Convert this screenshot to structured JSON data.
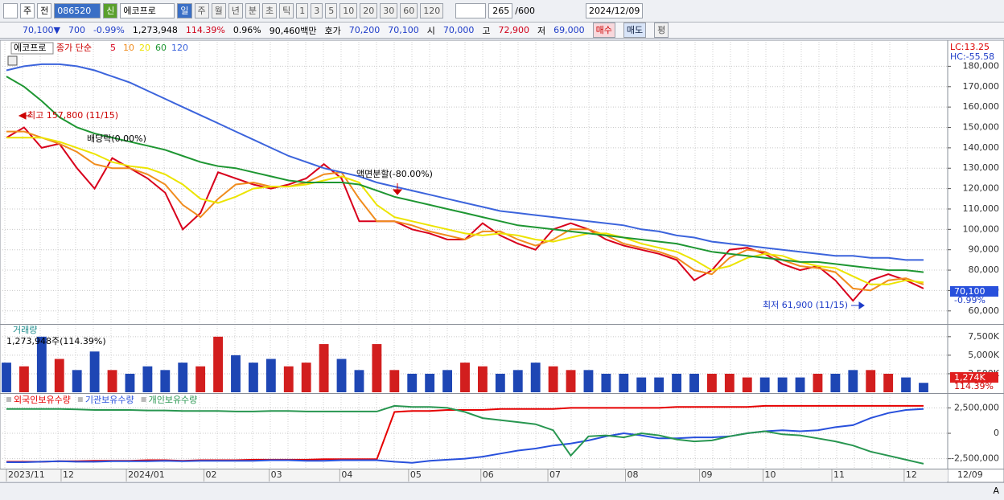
{
  "toolbar": {
    "market": "주",
    "prev": "전",
    "code": "086520",
    "badge": "신",
    "name": "에코프로",
    "periods": [
      "일",
      "주",
      "월",
      "년",
      "분",
      "초",
      "틱"
    ],
    "intervals": [
      "1",
      "3",
      "5",
      "10",
      "20",
      "30",
      "60",
      "120"
    ],
    "count": "265",
    "max": "/600",
    "date": "2024/12/09"
  },
  "quote": {
    "price": "70,100▼",
    "change": "700",
    "rate": "-0.99%",
    "volume": "1,273,948",
    "volume_rate": "114.39%",
    "turnover": "0.96%",
    "amount": "90,460백만",
    "bid_label": "호가",
    "ask": "70,200",
    "bid": "70,100",
    "open_label": "시",
    "open": "70,000",
    "high_label": "고",
    "high": "72,900",
    "low_label": "저",
    "low": "69,000",
    "buy": "매수",
    "sell": "매도",
    "avg": "평"
  },
  "chart_data": [
    {
      "type": "line",
      "title": "에코프로",
      "subtitle": "종가 단순",
      "grid": true,
      "series": [
        {
          "name": "5",
          "color": "#d8001c",
          "values": [
            145000,
            150000,
            140000,
            142000,
            130000,
            120000,
            135000,
            130000,
            125000,
            118000,
            100000,
            108000,
            128000,
            125000,
            122000,
            120000,
            122000,
            125000,
            132000,
            125000,
            104000,
            104000,
            104000,
            100000,
            98000,
            95000,
            95000,
            103000,
            97000,
            93000,
            90000,
            100000,
            103000,
            100000,
            95000,
            92000,
            90000,
            88000,
            85000,
            75000,
            80000,
            90000,
            91000,
            88000,
            83000,
            80000,
            82000,
            75000,
            65000,
            75000,
            78000,
            75000,
            71000
          ]
        },
        {
          "name": "10",
          "color": "#f08c1e",
          "values": [
            148000,
            148000,
            145000,
            142000,
            138000,
            132000,
            130000,
            130000,
            127000,
            122000,
            112000,
            106000,
            115000,
            122000,
            123000,
            121000,
            121000,
            123000,
            127000,
            128000,
            115000,
            104000,
            104000,
            102000,
            99000,
            97000,
            95000,
            99000,
            99000,
            95000,
            92000,
            95000,
            100000,
            100000,
            97000,
            93000,
            91000,
            89000,
            86000,
            80000,
            78000,
            86000,
            90000,
            89000,
            85000,
            82000,
            81000,
            79000,
            71000,
            70000,
            75000,
            76000,
            73000
          ]
        },
        {
          "name": "20",
          "color": "#ece400",
          "values": [
            145000,
            145000,
            145000,
            143000,
            140000,
            137000,
            133000,
            131000,
            130000,
            127000,
            122000,
            115000,
            113000,
            116000,
            120000,
            121000,
            121000,
            122000,
            124000,
            126000,
            123000,
            112000,
            106000,
            104000,
            102000,
            100000,
            98000,
            97000,
            98000,
            97000,
            95000,
            94000,
            96000,
            98000,
            98000,
            96000,
            93000,
            91000,
            89000,
            85000,
            80000,
            82000,
            86000,
            88000,
            87000,
            84000,
            82000,
            81000,
            77000,
            73000,
            73000,
            75000,
            74000
          ]
        },
        {
          "name": "60",
          "color": "#1e9632",
          "values": [
            175000,
            170000,
            163000,
            155000,
            150000,
            147000,
            145000,
            143000,
            141000,
            139000,
            136000,
            133000,
            131000,
            130000,
            128000,
            126000,
            124000,
            123000,
            123000,
            123000,
            122000,
            119000,
            116000,
            114000,
            112000,
            110000,
            108000,
            106000,
            104000,
            102000,
            101000,
            100000,
            99000,
            98000,
            97000,
            96000,
            95000,
            94000,
            93000,
            91000,
            89000,
            88000,
            87000,
            86000,
            85000,
            84000,
            84000,
            83000,
            82000,
            81000,
            80000,
            80000,
            79000
          ]
        },
        {
          "name": "120",
          "color": "#3c64dc",
          "values": [
            178000,
            180000,
            181000,
            181000,
            180000,
            178000,
            175000,
            172000,
            168000,
            164000,
            160000,
            156000,
            152000,
            148000,
            144000,
            140000,
            136000,
            133000,
            130000,
            128000,
            126000,
            123000,
            121000,
            119000,
            117000,
            115000,
            113000,
            111000,
            109000,
            108000,
            107000,
            106000,
            105000,
            104000,
            103000,
            102000,
            100000,
            99000,
            97000,
            96000,
            94000,
            93000,
            92000,
            91000,
            90000,
            89000,
            88000,
            87000,
            87000,
            86000,
            86000,
            85000,
            85000
          ]
        }
      ],
      "ylim": [
        54000,
        192000
      ],
      "yticks": [
        {
          "value": 60000,
          "label": "60,000"
        },
        {
          "value": 70000,
          "label": "70,000"
        },
        {
          "value": 80000,
          "label": "80,000"
        },
        {
          "value": 90000,
          "label": "90,000"
        },
        {
          "value": 100000,
          "label": "100,000"
        },
        {
          "value": 110000,
          "label": "110,000"
        },
        {
          "value": 120000,
          "label": "120,000"
        },
        {
          "value": 130000,
          "label": "130,000"
        },
        {
          "value": 140000,
          "label": "140,000"
        },
        {
          "value": 150000,
          "label": "150,000"
        },
        {
          "value": 160000,
          "label": "160,000"
        },
        {
          "value": 170000,
          "label": "170,000"
        },
        {
          "value": 180000,
          "label": "180,000"
        }
      ],
      "indicators": [
        "LC:13.25",
        "HC:-55.58"
      ],
      "annotations": [
        "최고 157,800 (11/15)",
        "배당락(0.00%)",
        "액면분할(-80.00%)",
        "최저 61,900 (11/15)"
      ],
      "last_price": "70,100",
      "last_change": "-0.99%"
    },
    {
      "type": "bar",
      "title": "거래량",
      "subtitle": "1,273,948주(114.39%)",
      "grid": true,
      "colors": {
        "up": "#d21e1e",
        "down": "#1e46b4"
      },
      "values": [
        4000000,
        3500000,
        7500000,
        4500000,
        3000000,
        5500000,
        3000000,
        2500000,
        3500000,
        3000000,
        4000000,
        3500000,
        7500000,
        5000000,
        4000000,
        4500000,
        3500000,
        4000000,
        6500000,
        4500000,
        3000000,
        6500000,
        3000000,
        2500000,
        2500000,
        3000000,
        4000000,
        3500000,
        2500000,
        3000000,
        4000000,
        3500000,
        3000000,
        3000000,
        2500000,
        2500000,
        2000000,
        2000000,
        2500000,
        2500000,
        2500000,
        2500000,
        2000000,
        2000000,
        2000000,
        2000000,
        2500000,
        2500000,
        3000000,
        3000000,
        2500000,
        2000000,
        1273948
      ],
      "ylim": [
        0,
        9000000
      ],
      "yticks": [
        {
          "value": 2500000,
          "label": "2,500K"
        },
        {
          "value": 5000000,
          "label": "5,000K"
        },
        {
          "value": 7500000,
          "label": "7,500K"
        }
      ],
      "last_label": "1,274K",
      "last_rate": "114.39%"
    },
    {
      "type": "line",
      "grid": true,
      "series": [
        {
          "name": "외국인보유수량",
          "color": "#e60000",
          "values": [
            -2800000,
            -2800000,
            -2800000,
            -2750000,
            -2750000,
            -2700000,
            -2700000,
            -2700000,
            -2650000,
            -2650000,
            -2700000,
            -2650000,
            -2650000,
            -2650000,
            -2600000,
            -2600000,
            -2600000,
            -2600000,
            -2550000,
            -2550000,
            -2550000,
            -2550000,
            2100000,
            2200000,
            2200000,
            2300000,
            2300000,
            2300000,
            2400000,
            2400000,
            2400000,
            2400000,
            2500000,
            2500000,
            2500000,
            2500000,
            2500000,
            2500000,
            2600000,
            2600000,
            2600000,
            2600000,
            2600000,
            2700000,
            2700000,
            2700000,
            2700000,
            2700000,
            2700000,
            2700000,
            2700000,
            2700000,
            2700000
          ]
        },
        {
          "name": "기관보유수량",
          "color": "#2850dc",
          "values": [
            -2850000,
            -2850000,
            -2800000,
            -2750000,
            -2800000,
            -2800000,
            -2750000,
            -2750000,
            -2750000,
            -2700000,
            -2750000,
            -2700000,
            -2700000,
            -2700000,
            -2700000,
            -2650000,
            -2650000,
            -2700000,
            -2700000,
            -2650000,
            -2650000,
            -2650000,
            -2800000,
            -2900000,
            -2700000,
            -2600000,
            -2500000,
            -2300000,
            -2000000,
            -1700000,
            -1500000,
            -1200000,
            -1000000,
            -700000,
            -300000,
            0,
            -200000,
            -500000,
            -500000,
            -400000,
            -400000,
            -300000,
            0,
            200000,
            300000,
            200000,
            300000,
            600000,
            800000,
            1500000,
            2000000,
            2300000,
            2400000
          ]
        },
        {
          "name": "개인보유수량",
          "color": "#289650",
          "values": [
            2400000,
            2400000,
            2400000,
            2400000,
            2350000,
            2300000,
            2300000,
            2300000,
            2250000,
            2250000,
            2200000,
            2200000,
            2200000,
            2150000,
            2150000,
            2200000,
            2200000,
            2150000,
            2150000,
            2150000,
            2150000,
            2150000,
            2700000,
            2600000,
            2600000,
            2500000,
            2100000,
            1500000,
            1300000,
            1100000,
            900000,
            300000,
            -2200000,
            -300000,
            -200000,
            -400000,
            0,
            -200000,
            -600000,
            -800000,
            -700000,
            -300000,
            0,
            200000,
            -100000,
            -200000,
            -500000,
            -800000,
            -1200000,
            -1800000,
            -2200000,
            -2600000,
            -3000000
          ]
        }
      ],
      "ylim": [
        -3400000,
        3800000
      ],
      "yticks": [
        {
          "value": 2500000,
          "label": "2,500,000"
        },
        0,
        {
          "value": -2500000,
          "label": "-2,500,000"
        }
      ]
    }
  ],
  "time_axis": {
    "labels": [
      "2023/11",
      "12",
      "2024/01",
      "02",
      "03",
      "04",
      "05",
      "06",
      "07",
      "08",
      "09",
      "10",
      "11",
      "12"
    ],
    "end": "12/09"
  },
  "footer": {
    "key": "A"
  }
}
